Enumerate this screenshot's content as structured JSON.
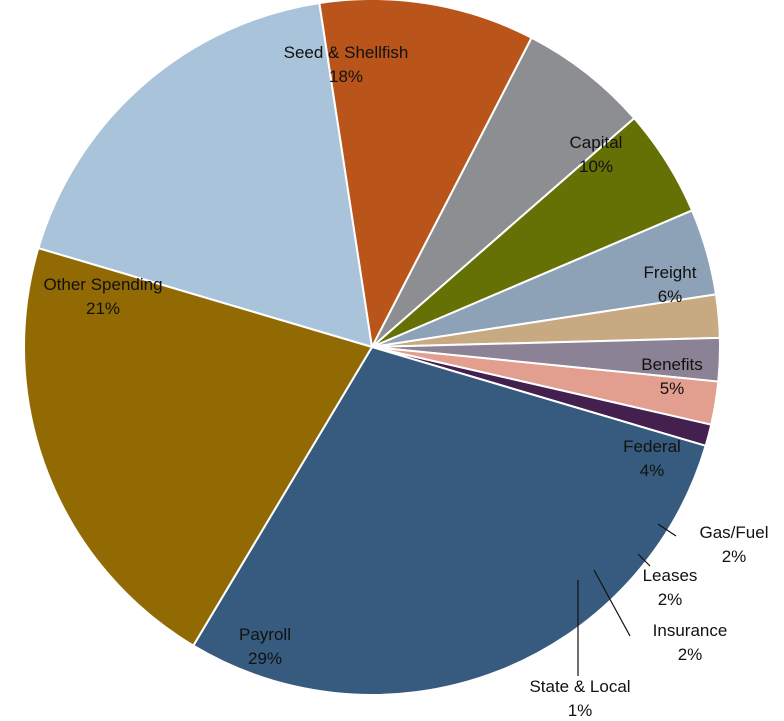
{
  "chart_data": {
    "type": "pie",
    "slices": [
      {
        "label": "Seed & Shellfish",
        "pct_label": "18%",
        "value": 18,
        "color": "#a9c3da"
      },
      {
        "label": "Capital",
        "pct_label": "10%",
        "value": 10,
        "color": "#b9541a"
      },
      {
        "label": "Freight",
        "pct_label": "6%",
        "value": 6,
        "color": "#8d8e92"
      },
      {
        "label": "Benefits",
        "pct_label": "5%",
        "value": 5,
        "color": "#667105"
      },
      {
        "label": "Federal",
        "pct_label": "4%",
        "value": 4,
        "color": "#8da2b6"
      },
      {
        "label": "Gas/Fuel",
        "pct_label": "2%",
        "value": 2,
        "color": "#c8aa82"
      },
      {
        "label": "Leases",
        "pct_label": "2%",
        "value": 2,
        "color": "#8b8395"
      },
      {
        "label": "Insurance",
        "pct_label": "2%",
        "value": 2,
        "color": "#e29f90"
      },
      {
        "label": "State & Local",
        "pct_label": "1%",
        "value": 1,
        "color": "#43204e"
      },
      {
        "label": "Payroll",
        "pct_label": "29%",
        "value": 29,
        "color": "#375b7e"
      },
      {
        "label": "Other Spending",
        "pct_label": "21%",
        "value": 21,
        "color": "#926a04"
      }
    ]
  }
}
